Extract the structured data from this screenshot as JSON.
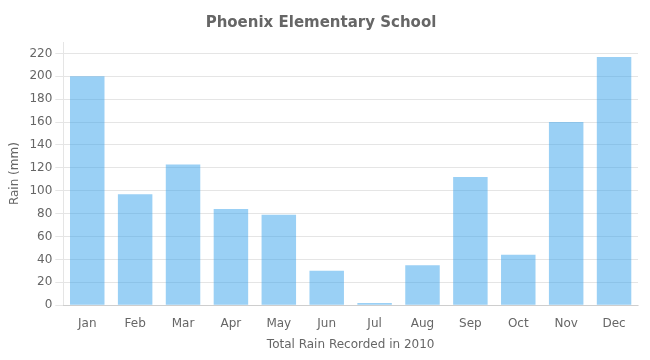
{
  "chart_data": {
    "type": "bar",
    "title": "Phoenix Elementary School",
    "xlabel": "Total Rain Recorded in 2010",
    "ylabel": "Rain (mm)",
    "categories": [
      "Jan",
      "Feb",
      "Mar",
      "Apr",
      "May",
      "Jun",
      "Jul",
      "Aug",
      "Sep",
      "Oct",
      "Nov",
      "Dec"
    ],
    "values": [
      200,
      97,
      123,
      84,
      79,
      30,
      2,
      35,
      112,
      44,
      160,
      217
    ],
    "ylim": [
      0,
      230
    ],
    "yticks": [
      0,
      20,
      40,
      60,
      80,
      100,
      120,
      140,
      160,
      180,
      200,
      220
    ],
    "grid": true
  }
}
